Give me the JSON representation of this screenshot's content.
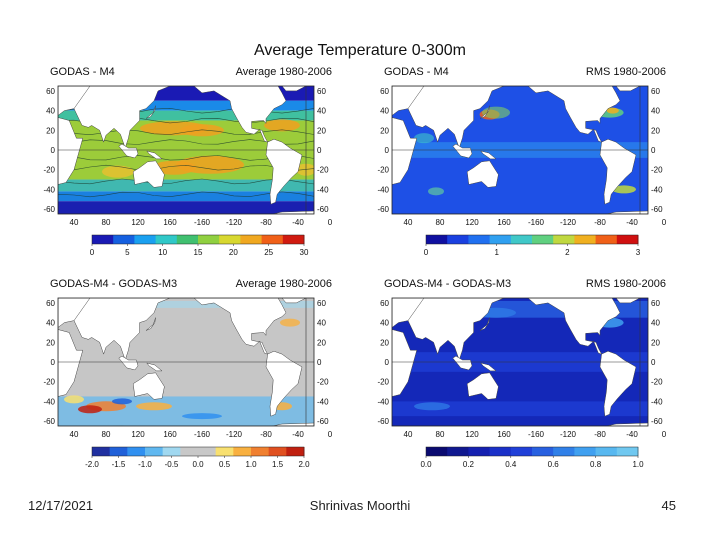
{
  "slide": {
    "title": "Average Temperature 0-300m",
    "footer_date": "12/17/2021",
    "footer_author": "Shrinivas Moorthi",
    "page_number": "45"
  },
  "panels": [
    {
      "title_left": "GODAS - M4",
      "title_right": "Average 1980-2006",
      "colorbar_ticks": [
        "0",
        "5",
        "10",
        "15",
        "20",
        "25",
        "30"
      ],
      "colorbar_colors": [
        "#1a1ab4",
        "#1560e0",
        "#1aa0f0",
        "#30c8c8",
        "#40c070",
        "#90d040",
        "#d8d830",
        "#f0a820",
        "#f06018",
        "#d01a10"
      ],
      "ocean_fill": "#7ec850",
      "style": "avg"
    },
    {
      "title_left": "GODAS - M4",
      "title_right": "RMS 1980-2006",
      "colorbar_ticks": [
        "0",
        "1",
        "2",
        "3"
      ],
      "colorbar_colors": [
        "#1010a0",
        "#1a40e0",
        "#2070f0",
        "#30a0f0",
        "#40c8c8",
        "#60d080",
        "#c0d840",
        "#f0b020",
        "#f06018",
        "#d01010"
      ],
      "ocean_fill": "#1e50e6",
      "style": "rms"
    },
    {
      "title_left": "GODAS-M4 - GODAS-M3",
      "title_right": "Average 1980-2006",
      "colorbar_ticks": [
        "-2.0",
        "-1.5",
        "-1.0",
        "-0.5",
        "0.0",
        "0.5",
        "1.0",
        "1.5",
        "2.0"
      ],
      "colorbar_colors": [
        "#2030a0",
        "#2060d8",
        "#3090f0",
        "#60b8f0",
        "#a0d8f0",
        "#c8c8c8",
        "#c8c8c8",
        "#f8e070",
        "#f8b040",
        "#f08030",
        "#e05020",
        "#c02010"
      ],
      "ocean_fill": "#c6c6c6",
      "style": "diff"
    },
    {
      "title_left": "GODAS-M4 - GODAS-M3",
      "title_right": "RMS 1980-2006",
      "colorbar_ticks": [
        "0.0",
        "0.2",
        "0.4",
        "0.6",
        "0.8",
        "1.0"
      ],
      "colorbar_colors": [
        "#0a0a70",
        "#101890",
        "#1420b0",
        "#1a30c8",
        "#2040d8",
        "#2860e0",
        "#3080e8",
        "#40a0f0",
        "#58b8f0",
        "#70c8f0"
      ],
      "ocean_fill": "#1428b8",
      "style": "rmsdiff"
    }
  ],
  "map_axes": {
    "lat_ticks": [
      "60",
      "40",
      "20",
      "0",
      "-20",
      "-40",
      "-60"
    ],
    "lon_ticks": [
      "40",
      "80",
      "120",
      "160",
      "-160",
      "-120",
      "-80",
      "-40",
      "0"
    ]
  }
}
